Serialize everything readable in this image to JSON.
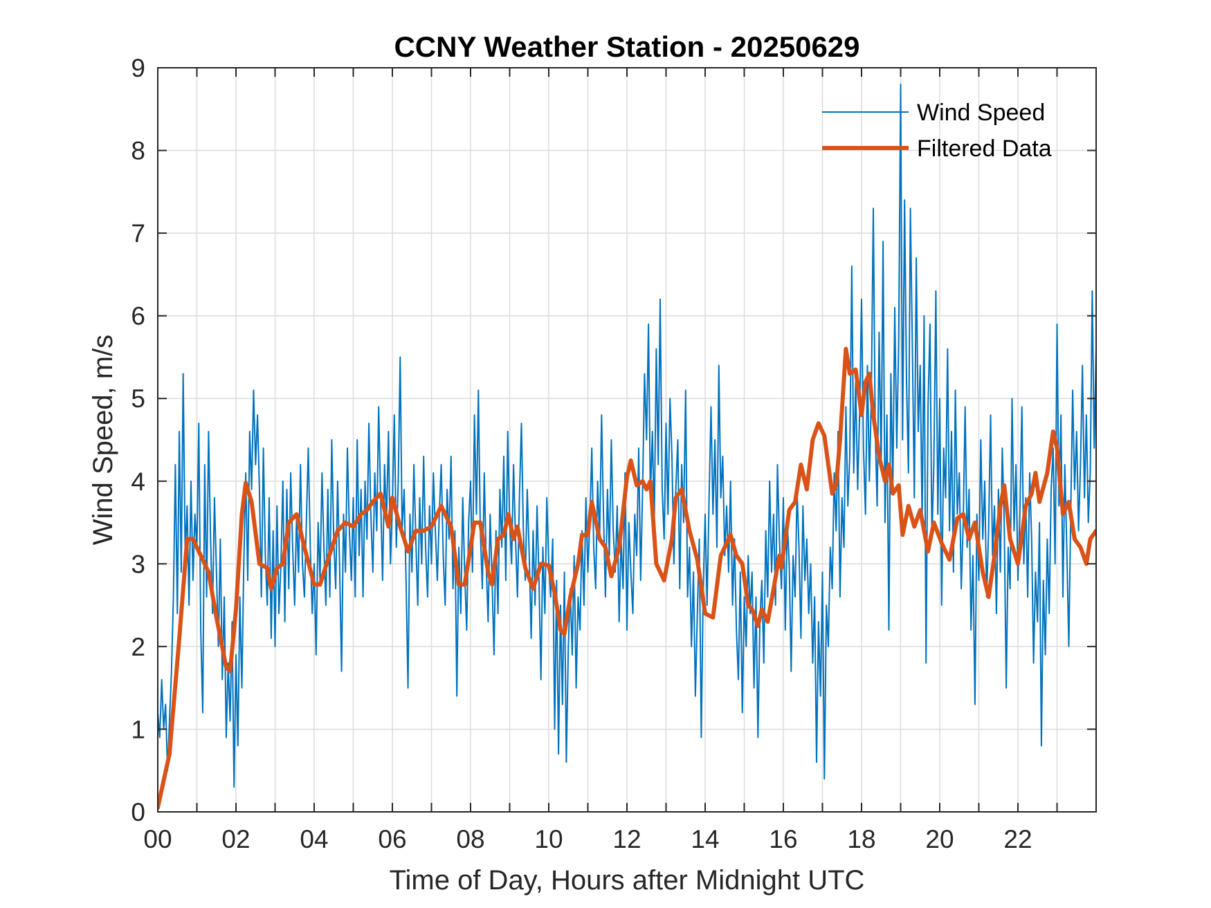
{
  "chart_data": {
    "type": "line",
    "title": "CCNY Weather Station - 20250629",
    "xlabel": "Time of Day, Hours after Midnight UTC",
    "ylabel": "Wind Speed, m/s",
    "xlim": [
      0,
      24
    ],
    "ylim": [
      0,
      9
    ],
    "grid": true,
    "legend_position": "top-right",
    "xticks": [
      0,
      1,
      2,
      3,
      4,
      5,
      6,
      7,
      8,
      9,
      10,
      11,
      12,
      13,
      14,
      15,
      16,
      17,
      18,
      19,
      20,
      21,
      22,
      23
    ],
    "xtick_labels": [
      "00",
      "",
      "02",
      "",
      "04",
      "",
      "06",
      "",
      "08",
      "",
      "10",
      "",
      "12",
      "",
      "14",
      "",
      "16",
      "",
      "18",
      "",
      "20",
      "",
      "22",
      ""
    ],
    "yticks": [
      0,
      1,
      2,
      3,
      4,
      5,
      6,
      7,
      8,
      9
    ],
    "ytick_labels": [
      "0",
      "1",
      "2",
      "3",
      "4",
      "5",
      "6",
      "7",
      "8",
      "9"
    ],
    "series": [
      {
        "name": "Wind Speed",
        "color": "#0072BD",
        "x_step_hours": 0.05,
        "values": [
          1.2,
          0.9,
          1.6,
          1.0,
          1.3,
          0.5,
          1.1,
          1.7,
          2.6,
          4.2,
          2.4,
          4.6,
          2.9,
          5.3,
          3.1,
          3.7,
          2.5,
          4.0,
          2.8,
          3.6,
          3.2,
          4.7,
          2.2,
          1.2,
          4.2,
          2.6,
          4.6,
          3.3,
          2.4,
          3.8,
          2.9,
          2.0,
          3.3,
          1.6,
          2.6,
          0.9,
          1.8,
          1.1,
          2.3,
          0.3,
          1.9,
          0.8,
          2.6,
          1.5,
          3.0,
          4.1,
          2.8,
          4.6,
          3.9,
          5.1,
          4.2,
          4.8,
          3.9,
          2.6,
          4.4,
          3.1,
          2.5,
          3.8,
          2.1,
          3.4,
          2.0,
          3.7,
          2.4,
          3.0,
          4.0,
          2.3,
          3.9,
          2.7,
          4.1,
          3.2,
          2.5,
          3.6,
          2.9,
          4.2,
          3.0,
          2.6,
          3.5,
          4.4,
          3.2,
          2.4,
          3.0,
          1.9,
          3.5,
          2.8,
          4.1,
          3.2,
          2.5,
          3.9,
          2.6,
          4.5,
          3.3,
          2.7,
          4.0,
          3.0,
          1.7,
          3.6,
          2.9,
          4.4,
          3.4,
          2.8,
          3.8,
          2.6,
          4.5,
          3.1,
          3.9,
          2.6,
          4.0,
          3.3,
          4.7,
          3.6,
          2.9,
          4.1,
          3.4,
          4.9,
          3.8,
          2.8,
          4.2,
          3.5,
          4.6,
          3.0,
          3.7,
          4.8,
          3.2,
          4.0,
          5.5,
          3.4,
          3.9,
          2.8,
          1.5,
          3.6,
          2.9,
          4.2,
          3.3,
          2.5,
          3.8,
          3.0,
          4.3,
          3.2,
          2.6,
          3.7,
          3.0,
          4.1,
          3.4,
          2.8,
          3.6,
          4.2,
          3.1,
          2.5,
          3.9,
          3.3,
          4.3,
          2.7,
          3.4,
          1.4,
          3.2,
          2.4,
          3.8,
          2.9,
          2.2,
          3.5,
          4.0,
          2.9,
          4.8,
          3.6,
          5.1,
          3.4,
          2.7,
          4.1,
          3.0,
          2.3,
          3.6,
          2.8,
          1.9,
          3.4,
          2.4,
          3.9,
          3.2,
          4.3,
          2.8,
          4.6,
          3.5,
          3.0,
          4.2,
          3.3,
          2.6,
          3.8,
          4.7,
          3.4,
          2.8,
          3.9,
          3.1,
          2.1,
          3.4,
          2.5,
          3.7,
          2.8,
          1.6,
          3.2,
          2.4,
          3.8,
          3.0,
          2.6,
          3.3,
          1.0,
          2.8,
          0.7,
          2.5,
          1.3,
          2.9,
          0.6,
          2.0,
          2.7,
          1.9,
          3.1,
          1.5,
          2.6,
          2.2,
          3.4,
          2.5,
          3.8,
          2.9,
          3.5,
          4.4,
          3.2,
          2.7,
          4.0,
          3.3,
          4.8,
          3.6,
          2.6,
          3.9,
          3.1,
          4.5,
          3.4,
          2.9,
          3.7,
          2.3,
          3.3,
          2.7,
          4.1,
          2.2,
          3.5,
          2.9,
          2.4,
          3.6,
          3.1,
          4.4,
          2.8,
          3.9,
          5.3,
          4.5,
          5.9,
          3.8,
          4.6,
          3.5,
          5.6,
          4.2,
          6.2,
          3.9,
          3.3,
          4.7,
          3.6,
          5.0,
          4.3,
          3.0,
          3.9,
          4.5,
          2.7,
          4.2,
          3.5,
          5.1,
          2.6,
          3.2,
          2.0,
          2.9,
          1.4,
          2.4,
          3.3,
          0.9,
          2.7,
          3.6,
          2.5,
          3.8,
          4.9,
          3.6,
          4.5,
          3.2,
          5.4,
          3.8,
          4.3,
          3.1,
          3.7,
          2.9,
          4.0,
          2.5,
          3.3,
          2.2,
          1.6,
          2.9,
          1.2,
          2.6,
          2.0,
          3.1,
          2.4,
          2.9,
          1.5,
          2.6,
          0.9,
          2.3,
          2.8,
          1.8,
          3.4,
          2.6,
          4.0,
          2.9,
          3.6,
          2.5,
          4.2,
          3.3,
          2.7,
          3.8,
          2.2,
          3.5,
          3.0,
          1.7,
          3.1,
          2.6,
          3.9,
          3.2,
          2.1,
          3.7,
          2.8,
          3.3,
          2.4,
          3.0,
          1.8,
          2.6,
          0.6,
          2.3,
          1.4,
          2.9,
          0.4,
          2.5,
          2.0,
          3.2,
          2.7,
          4.1,
          3.4,
          4.6,
          2.6,
          3.8,
          3.2,
          4.9,
          3.7,
          4.3,
          6.6,
          4.1,
          5.2,
          3.9,
          4.8,
          6.2,
          4.4,
          3.6,
          5.4,
          4.0,
          5.0,
          7.3,
          4.6,
          3.7,
          5.8,
          4.2,
          6.9,
          3.5,
          4.8,
          2.2,
          5.3,
          3.9,
          6.1,
          4.4,
          5.7,
          8.8,
          4.5,
          7.4,
          5.2,
          4.1,
          7.3,
          5.6,
          3.8,
          6.7,
          4.6,
          5.4,
          3.5,
          6.0,
          1.8,
          4.9,
          5.9,
          3.3,
          4.2,
          6.3,
          3.6,
          5.0,
          2.5,
          4.4,
          3.8,
          5.6,
          3.4,
          4.6,
          2.9,
          5.1,
          3.6,
          4.1,
          2.7,
          3.5,
          4.9,
          3.2,
          3.9,
          2.2,
          3.1,
          1.3,
          3.6,
          2.8,
          4.5,
          3.3,
          4.0,
          2.6,
          3.4,
          4.8,
          3.1,
          3.7,
          2.4,
          3.9,
          2.9,
          4.4,
          3.5,
          1.5,
          3.2,
          2.7,
          5.0,
          3.4,
          4.2,
          2.8,
          3.6,
          4.9,
          3.0,
          3.8,
          2.6,
          4.1,
          3.3,
          1.8,
          2.9,
          2.3,
          3.5,
          0.8,
          2.8,
          1.9,
          3.3,
          2.4,
          3.9,
          4.4,
          3.0,
          5.9,
          3.7,
          4.8,
          2.6,
          4.2,
          3.2,
          2.0,
          3.6,
          5.1,
          3.9,
          4.6,
          3.4,
          4.2,
          5.4,
          3.8,
          4.8,
          3.5,
          4.1,
          6.3,
          4.4,
          5.6,
          4.0,
          3.2,
          4.4,
          3.1,
          3.7,
          2.6,
          3.9,
          1.4,
          3.4,
          4.3,
          3.0,
          3.6,
          2.6,
          4.1,
          3.2,
          2.9,
          3.8,
          3.1,
          3.4,
          2.9,
          3.6
        ]
      },
      {
        "name": "Filtered Data",
        "color": "#D95319",
        "x": [
          0.0,
          0.3,
          0.55,
          0.75,
          0.9,
          1.05,
          1.3,
          1.5,
          1.75,
          1.85,
          2.0,
          2.15,
          2.25,
          2.4,
          2.6,
          2.8,
          2.9,
          3.05,
          3.2,
          3.35,
          3.55,
          3.75,
          4.0,
          4.15,
          4.35,
          4.6,
          4.8,
          5.0,
          5.2,
          5.35,
          5.5,
          5.7,
          5.9,
          6.0,
          6.2,
          6.4,
          6.6,
          6.8,
          7.0,
          7.25,
          7.5,
          7.7,
          7.85,
          8.1,
          8.25,
          8.45,
          8.55,
          8.7,
          8.85,
          8.97,
          9.1,
          9.2,
          9.4,
          9.6,
          9.8,
          10.0,
          10.15,
          10.3,
          10.4,
          10.55,
          10.75,
          10.85,
          11.0,
          11.1,
          11.3,
          11.45,
          11.6,
          11.8,
          12.0,
          12.1,
          12.25,
          12.4,
          12.5,
          12.6,
          12.75,
          12.95,
          13.15,
          13.25,
          13.4,
          13.6,
          13.8,
          14.0,
          14.2,
          14.4,
          14.65,
          14.8,
          14.95,
          15.1,
          15.2,
          15.35,
          15.45,
          15.6,
          15.75,
          15.9,
          15.95,
          16.15,
          16.3,
          16.45,
          16.6,
          16.75,
          16.9,
          17.05,
          17.25,
          17.35,
          17.45,
          17.6,
          17.7,
          17.85,
          18.0,
          18.1,
          18.2,
          18.3,
          18.45,
          18.6,
          18.7,
          18.8,
          18.95,
          19.05,
          19.2,
          19.35,
          19.5,
          19.7,
          19.85,
          20.05,
          20.25,
          20.45,
          20.6,
          20.75,
          20.9,
          21.1,
          21.25,
          21.4,
          21.55,
          21.65,
          21.8,
          22.0,
          22.2,
          22.35,
          22.45,
          22.55,
          22.75,
          22.9,
          23.0,
          23.15,
          23.3,
          23.45,
          23.6,
          23.75,
          23.85,
          24.0
        ],
        "values": [
          0.05,
          0.7,
          2.1,
          3.3,
          3.3,
          3.15,
          2.9,
          2.35,
          1.75,
          1.7,
          2.45,
          3.6,
          3.98,
          3.75,
          3.0,
          2.95,
          2.7,
          2.95,
          3.0,
          3.5,
          3.6,
          3.2,
          2.75,
          2.75,
          3.05,
          3.4,
          3.5,
          3.45,
          3.6,
          3.65,
          3.75,
          3.85,
          3.45,
          3.8,
          3.45,
          3.15,
          3.4,
          3.4,
          3.45,
          3.7,
          3.45,
          2.75,
          2.75,
          3.5,
          3.5,
          2.9,
          2.75,
          3.3,
          3.35,
          3.6,
          3.3,
          3.45,
          2.95,
          2.7,
          3.0,
          2.98,
          2.65,
          2.2,
          2.15,
          2.6,
          3.0,
          3.35,
          3.35,
          3.75,
          3.3,
          3.2,
          2.85,
          3.2,
          4.05,
          4.25,
          3.95,
          4.0,
          3.9,
          4.0,
          3.0,
          2.8,
          3.3,
          3.8,
          3.9,
          3.4,
          3.05,
          2.4,
          2.35,
          3.1,
          3.35,
          3.1,
          3.0,
          2.5,
          2.45,
          2.25,
          2.45,
          2.3,
          2.7,
          3.1,
          2.95,
          3.65,
          3.75,
          4.2,
          3.9,
          4.5,
          4.7,
          4.55,
          3.85,
          3.95,
          4.5,
          5.6,
          5.3,
          5.35,
          4.8,
          5.2,
          5.3,
          4.8,
          4.3,
          4.0,
          4.2,
          3.85,
          3.95,
          3.35,
          3.7,
          3.45,
          3.65,
          3.15,
          3.5,
          3.25,
          3.05,
          3.55,
          3.6,
          3.3,
          3.5,
          2.9,
          2.6,
          3.1,
          3.7,
          3.95,
          3.3,
          3.0,
          3.7,
          3.85,
          4.1,
          3.75,
          4.1,
          4.6,
          4.4,
          3.6,
          3.75,
          3.3,
          3.2,
          3.0,
          3.3,
          3.4
        ]
      }
    ]
  }
}
